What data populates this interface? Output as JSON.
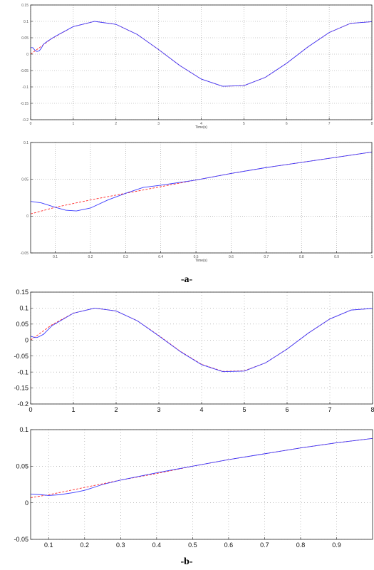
{
  "figure": {
    "caption_a": "-a-",
    "caption_b": "-b-"
  },
  "colors": {
    "reference": "#ff2a2a",
    "actual": "#3a3aff",
    "grid": "#9a9a9a"
  },
  "chart_data": [
    {
      "type": "line",
      "panel": "a-top",
      "xlim": [
        0,
        8
      ],
      "ylim": [
        -0.2,
        0.15
      ],
      "xticks": [
        0,
        1,
        2,
        3,
        4,
        5,
        6,
        7,
        8
      ],
      "yticks": [
        0.15,
        0.1,
        0.05,
        0,
        -0.05,
        -0.1,
        -0.15,
        -0.2
      ],
      "xtick_labels": [
        "0",
        "1",
        "2",
        "3",
        "4",
        "5",
        "6",
        "7",
        "8"
      ],
      "ytick_labels": [
        "0.15",
        "0.1",
        "0.05",
        "0",
        "-0.05",
        "-0.1",
        "-0.15",
        "-0.2"
      ],
      "xlabel": "Time(s)",
      "ylabel": "",
      "title": "",
      "grid": "dotted",
      "series": [
        {
          "style": "reference-dashed",
          "x": [
            0,
            0.5,
            1,
            1.5,
            2,
            2.5,
            3,
            3.5,
            4,
            4.5,
            5,
            5.5,
            6,
            6.5,
            7,
            7.5,
            8
          ],
          "y": [
            0,
            0.048,
            0.084,
            0.1,
            0.091,
            0.06,
            0.014,
            -0.035,
            -0.076,
            -0.098,
            -0.096,
            -0.071,
            -0.028,
            0.022,
            0.066,
            0.094,
            0.099
          ]
        },
        {
          "style": "actual-solid",
          "x": [
            0,
            0.05,
            0.1,
            0.15,
            0.2,
            0.25,
            0.3,
            0.4,
            0.5,
            0.6,
            1,
            1.5,
            2,
            2.5,
            3,
            3.5,
            4,
            4.5,
            5,
            5.5,
            6,
            6.5,
            7,
            7.5,
            8
          ],
          "y": [
            0.02,
            0.02,
            0.012,
            0.008,
            0.01,
            0.018,
            0.03,
            0.04,
            0.048,
            0.056,
            0.084,
            0.1,
            0.091,
            0.06,
            0.014,
            -0.035,
            -0.076,
            -0.098,
            -0.096,
            -0.071,
            -0.028,
            0.022,
            0.066,
            0.094,
            0.099
          ]
        }
      ]
    },
    {
      "type": "line",
      "panel": "a-bottom",
      "xlim": [
        0.03,
        1
      ],
      "ylim": [
        -0.05,
        0.1
      ],
      "xticks": [
        0.1,
        0.2,
        0.3,
        0.4,
        0.5,
        0.6,
        0.7,
        0.8,
        0.9,
        1
      ],
      "yticks": [
        0.1,
        0.05,
        0,
        -0.05
      ],
      "xtick_labels": [
        "0.1",
        "0.2",
        "0.3",
        "0.4",
        "0.5",
        "0.6",
        "0.7",
        "0.8",
        "0.9",
        "1"
      ],
      "ytick_labels": [
        "0.1",
        "0.05",
        "0",
        "-0.05"
      ],
      "xlabel": "Time(s)",
      "ylabel": "",
      "title": "",
      "grid": "dotted",
      "series": [
        {
          "style": "reference-dashed",
          "x": [
            0.03,
            0.1,
            0.2,
            0.3,
            0.4,
            0.5,
            0.6,
            0.7,
            0.8,
            0.9,
            1
          ],
          "y": [
            0.003,
            0.012,
            0.022,
            0.031,
            0.04,
            0.049,
            0.058,
            0.066,
            0.073,
            0.08,
            0.087
          ]
        },
        {
          "style": "actual-solid",
          "x": [
            0.03,
            0.06,
            0.1,
            0.13,
            0.16,
            0.2,
            0.25,
            0.3,
            0.35,
            0.4,
            0.5,
            0.6,
            0.7,
            0.8,
            0.9,
            1
          ],
          "y": [
            0.02,
            0.018,
            0.012,
            0.008,
            0.007,
            0.011,
            0.022,
            0.031,
            0.039,
            0.042,
            0.049,
            0.058,
            0.066,
            0.073,
            0.08,
            0.087
          ]
        }
      ]
    },
    {
      "type": "line",
      "panel": "b-top",
      "xlim": [
        0,
        8
      ],
      "ylim": [
        -0.2,
        0.15
      ],
      "xticks": [
        0,
        1,
        2,
        3,
        4,
        5,
        6,
        7,
        8
      ],
      "yticks": [
        0.15,
        0.1,
        0.05,
        0,
        -0.05,
        -0.1,
        -0.15,
        -0.2
      ],
      "xtick_labels": [
        "0",
        "1",
        "2",
        "3",
        "4",
        "5",
        "6",
        "7",
        "8"
      ],
      "ytick_labels": [
        "0.15",
        "0.1",
        "0.05",
        "0",
        "-0.05",
        "-0.1",
        "-0.15",
        "-0.2"
      ],
      "xlabel": "",
      "ylabel": "",
      "title": "",
      "grid": "dotted",
      "series": [
        {
          "style": "reference-dashed",
          "x": [
            0,
            0.5,
            1,
            1.5,
            2,
            2.5,
            3,
            3.5,
            4,
            4.5,
            5,
            5.5,
            6,
            6.5,
            7,
            7.5,
            8
          ],
          "y": [
            0,
            0.048,
            0.084,
            0.1,
            0.091,
            0.06,
            0.014,
            -0.035,
            -0.076,
            -0.098,
            -0.096,
            -0.071,
            -0.028,
            0.022,
            0.066,
            0.094,
            0.099
          ]
        },
        {
          "style": "actual-solid",
          "x": [
            0,
            0.05,
            0.1,
            0.15,
            0.2,
            0.3,
            0.5,
            1,
            1.5,
            2,
            2.5,
            3,
            3.5,
            4,
            4.5,
            5,
            5.5,
            6,
            6.5,
            7,
            7.5,
            8
          ],
          "y": [
            0.012,
            0.01,
            0.008,
            0.008,
            0.011,
            0.018,
            0.045,
            0.084,
            0.1,
            0.091,
            0.06,
            0.013,
            -0.036,
            -0.077,
            -0.099,
            -0.097,
            -0.071,
            -0.028,
            0.022,
            0.066,
            0.094,
            0.099
          ]
        }
      ]
    },
    {
      "type": "line",
      "panel": "b-bottom",
      "xlim": [
        0.05,
        1
      ],
      "ylim": [
        -0.05,
        0.1
      ],
      "xticks": [
        0.1,
        0.2,
        0.3,
        0.4,
        0.5,
        0.6,
        0.7,
        0.8,
        0.9
      ],
      "yticks": [
        0.1,
        0.05,
        0,
        -0.05
      ],
      "xtick_labels": [
        "0.1",
        "0.2",
        "0.3",
        "0.4",
        "0.5",
        "0.6",
        "0.7",
        "0.8",
        "0.9"
      ],
      "ytick_labels": [
        "0.1",
        "0.05",
        "0",
        "-0.05"
      ],
      "xlabel": "",
      "ylabel": "",
      "title": "",
      "grid": "dotted",
      "series": [
        {
          "style": "reference-dashed",
          "x": [
            0.05,
            0.1,
            0.2,
            0.3,
            0.4,
            0.5,
            0.6,
            0.7,
            0.8,
            0.9,
            1
          ],
          "y": [
            0.007,
            0.011,
            0.021,
            0.031,
            0.04,
            0.05,
            0.059,
            0.067,
            0.075,
            0.082,
            0.088
          ]
        },
        {
          "style": "actual-solid",
          "x": [
            0.05,
            0.08,
            0.1,
            0.13,
            0.17,
            0.2,
            0.25,
            0.3,
            0.35,
            0.4,
            0.5,
            0.6,
            0.7,
            0.8,
            0.9,
            1
          ],
          "y": [
            0.012,
            0.011,
            0.01,
            0.011,
            0.014,
            0.017,
            0.025,
            0.031,
            0.036,
            0.041,
            0.05,
            0.059,
            0.067,
            0.075,
            0.082,
            0.088
          ]
        }
      ]
    }
  ]
}
